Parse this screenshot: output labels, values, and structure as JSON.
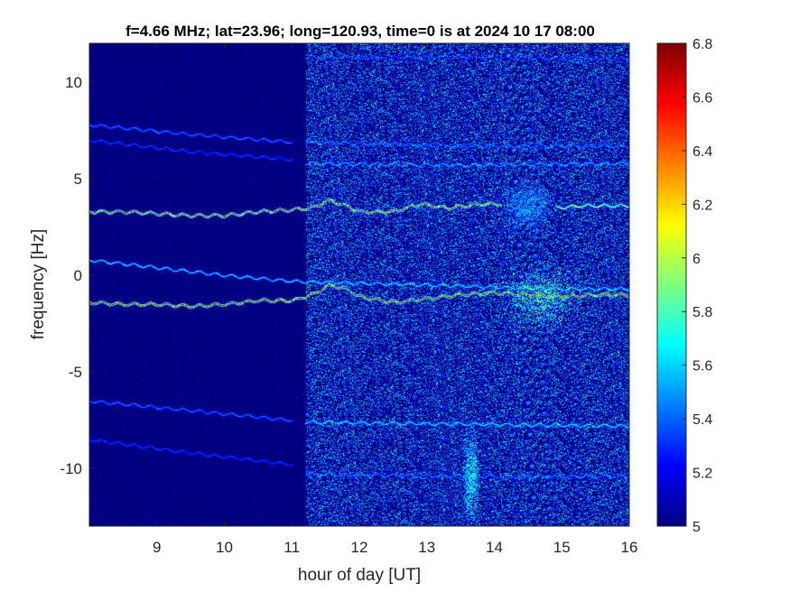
{
  "chart_data": {
    "type": "heatmap",
    "title": "f=4.66 MHz;  lat=23.96; long=120.93, time=0 is at 2024 10 17 08:00",
    "xlabel": "hour of day [UT]",
    "ylabel": "frequency [Hz]",
    "xlim": [
      8.0,
      16.0
    ],
    "ylim": [
      -13,
      12
    ],
    "xticks": [
      9,
      10,
      11,
      12,
      13,
      14,
      15,
      16
    ],
    "xtick_labels": [
      "9",
      "10",
      "11",
      "12",
      "13",
      "14",
      "15",
      "16"
    ],
    "yticks": [
      10,
      5,
      0,
      -5,
      -10
    ],
    "ytick_labels": [
      "10",
      "5",
      "0",
      "-5",
      "-10"
    ],
    "colormap": "jet",
    "colorbar": {
      "min": 5.0,
      "max": 6.8,
      "ticks": [
        6.8,
        6.6,
        6.4,
        6.2,
        6.0,
        5.8,
        5.6,
        5.4,
        5.2,
        5.0
      ],
      "tick_labels": [
        "6.8",
        "6.6",
        "6.4",
        "6.2",
        "6",
        "5.8",
        "5.6",
        "5.4",
        "5.2",
        "5"
      ]
    },
    "background_level": 5.0,
    "noise_increase_after_hour": 11.2,
    "traces": [
      {
        "description": "upper doppler trace",
        "points": [
          [
            8.0,
            3.3
          ],
          [
            8.5,
            3.3
          ],
          [
            9.0,
            3.2
          ],
          [
            9.5,
            3.1
          ],
          [
            10.0,
            3.1
          ],
          [
            10.5,
            3.3
          ],
          [
            11.0,
            3.4
          ],
          [
            11.3,
            3.5
          ],
          [
            11.55,
            3.9
          ],
          [
            11.8,
            3.6
          ],
          [
            12.0,
            3.3
          ],
          [
            12.5,
            3.3
          ],
          [
            12.9,
            3.7
          ],
          [
            13.3,
            3.5
          ],
          [
            13.8,
            3.7
          ],
          [
            14.1,
            3.7
          ]
        ],
        "level": 6.3
      },
      {
        "description": "upper trace after disturbance",
        "points": [
          [
            14.9,
            3.5
          ],
          [
            15.3,
            3.6
          ],
          [
            16.0,
            3.6
          ]
        ],
        "level": 5.9
      },
      {
        "description": "lower doppler trace",
        "points": [
          [
            8.0,
            -1.4
          ],
          [
            8.5,
            -1.5
          ],
          [
            9.0,
            -1.5
          ],
          [
            9.5,
            -1.6
          ],
          [
            10.0,
            -1.5
          ],
          [
            10.5,
            -1.3
          ],
          [
            11.0,
            -1.3
          ],
          [
            11.3,
            -1.0
          ],
          [
            11.55,
            -0.5
          ],
          [
            11.8,
            -0.7
          ],
          [
            12.0,
            -1.1
          ],
          [
            12.5,
            -1.4
          ],
          [
            13.0,
            -1.2
          ],
          [
            13.5,
            -1.0
          ],
          [
            14.0,
            -0.9
          ],
          [
            14.5,
            -1.0
          ],
          [
            15.0,
            -1.1
          ],
          [
            15.5,
            -1.0
          ],
          [
            16.0,
            -1.0
          ]
        ],
        "level": 6.4
      },
      {
        "description": "faint trace near zero",
        "points": [
          [
            8.0,
            0.8
          ],
          [
            9.0,
            0.4
          ],
          [
            10.0,
            0.0
          ],
          [
            11.0,
            -0.3
          ],
          [
            12.0,
            -0.4
          ],
          [
            13.0,
            -0.5
          ],
          [
            14.0,
            -0.6
          ],
          [
            15.0,
            -0.7
          ],
          [
            16.0,
            -0.7
          ]
        ],
        "level": 5.6
      },
      {
        "description": "faint line",
        "points": [
          [
            8.0,
            7.8
          ],
          [
            9.5,
            7.3
          ],
          [
            11.0,
            6.9
          ]
        ],
        "level": 5.4
      },
      {
        "description": "faint line",
        "points": [
          [
            8.0,
            7.0
          ],
          [
            9.5,
            6.4
          ],
          [
            11.0,
            6.0
          ]
        ],
        "level": 5.3
      },
      {
        "description": "faint line",
        "points": [
          [
            11.2,
            6.9
          ],
          [
            13.5,
            6.7
          ],
          [
            16.0,
            6.7
          ]
        ],
        "level": 5.4
      },
      {
        "description": "faint line",
        "points": [
          [
            11.2,
            5.8
          ],
          [
            13.5,
            5.7
          ],
          [
            16.0,
            5.8
          ]
        ],
        "level": 5.5
      },
      {
        "description": "faint line",
        "points": [
          [
            11.2,
            11.3
          ],
          [
            13.5,
            11.3
          ],
          [
            16.0,
            11.2
          ]
        ],
        "level": 5.3
      },
      {
        "description": "faint line",
        "points": [
          [
            8.0,
            -6.5
          ],
          [
            9.5,
            -7.0
          ],
          [
            11.0,
            -7.5
          ]
        ],
        "level": 5.4
      },
      {
        "description": "faint line",
        "points": [
          [
            11.2,
            -7.6
          ],
          [
            13.5,
            -7.7
          ],
          [
            16.0,
            -7.8
          ]
        ],
        "level": 5.6
      },
      {
        "description": "faint line",
        "points": [
          [
            8.0,
            -8.5
          ],
          [
            9.5,
            -9.2
          ],
          [
            11.0,
            -9.8
          ]
        ],
        "level": 5.3
      },
      {
        "description": "faint line",
        "points": [
          [
            11.2,
            -10.3
          ],
          [
            13.5,
            -10.4
          ],
          [
            16.0,
            -10.4
          ]
        ],
        "level": 5.4
      }
    ],
    "blobs": [
      {
        "x": 14.7,
        "y": -1.2,
        "sx": 0.35,
        "sy": 1.1,
        "level": 6.0
      },
      {
        "x": 14.5,
        "y": 3.6,
        "sx": 0.25,
        "sy": 0.8,
        "level": 5.6
      },
      {
        "x": 13.65,
        "y": -10.5,
        "sx": 0.08,
        "sy": 1.6,
        "level": 5.8
      }
    ]
  }
}
